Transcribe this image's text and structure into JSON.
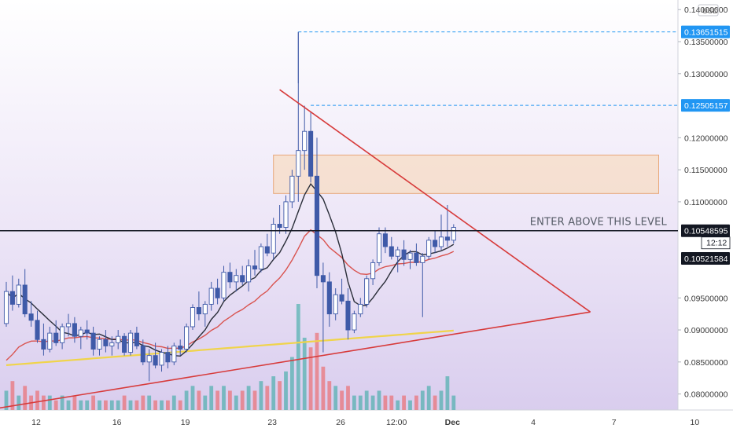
{
  "chart_data": {
    "type": "candlestick",
    "currency": "USD",
    "y_axis": {
      "min": 0.0775,
      "max": 0.1415,
      "ticks": [
        "0.14000000",
        "0.13500000",
        "0.13000000",
        "0.12000000",
        "0.11500000",
        "0.11000000",
        "0.09500000",
        "0.09000000",
        "0.08500000",
        "0.08000000"
      ],
      "tick_values": [
        0.14,
        0.135,
        0.13,
        0.12,
        0.115,
        0.11,
        0.095,
        0.09,
        0.085,
        0.08
      ]
    },
    "x_axis": {
      "labels": [
        "12",
        "16",
        "19",
        "23",
        "26",
        "12:00",
        "Dec",
        "4",
        "7",
        "10"
      ],
      "label_index": [
        0,
        13,
        24,
        38,
        49,
        58,
        67,
        80,
        93,
        106
      ]
    },
    "price_tags": [
      {
        "value": 0.13651515,
        "label": "0.13651515",
        "style": "blue"
      },
      {
        "value": 0.12505157,
        "label": "0.12505157",
        "style": "blue"
      },
      {
        "value": 0.10548595,
        "label": "0.10548595",
        "style": "black"
      },
      {
        "value": 0.10521584,
        "label": "0.10521584",
        "style": "black"
      }
    ],
    "countdown": "12:12",
    "annotation": {
      "text": "ENTER ABOVE THIS LEVEL",
      "level": 0.10548595
    },
    "zone": {
      "x_from": 43,
      "x_to": 105,
      "y_low": 0.1113,
      "y_high": 0.1173
    },
    "trendlines": [
      {
        "name": "resistance",
        "x1": 44,
        "y1": 0.1275,
        "x2": 94,
        "y2": 0.0928
      },
      {
        "name": "support",
        "x1": -5,
        "y1": 0.0772,
        "x2": 94,
        "y2": 0.0928
      }
    ],
    "colors": {
      "up": "#26a69a",
      "down": "#ef5350",
      "candle_body": "#3f5aa8",
      "vol_up": "#26a69a",
      "vol_down": "#ef5350",
      "ma_dark": "#2a2e39",
      "ma_red": "#d9534f",
      "ma_yellow": "#f0d44a",
      "trend": "#d73b3b",
      "zone_fill": "#f7dcc4",
      "zone_stroke": "#e8a87c",
      "tag_blue": "#2196f3"
    },
    "candles": [
      [
        0.091,
        0.0975,
        0.0905,
        0.096
      ],
      [
        0.096,
        0.0985,
        0.093,
        0.094
      ],
      [
        0.094,
        0.098,
        0.0935,
        0.097
      ],
      [
        0.097,
        0.0995,
        0.092,
        0.0925
      ],
      [
        0.0925,
        0.0945,
        0.0905,
        0.0915
      ],
      [
        0.0915,
        0.093,
        0.088,
        0.0885
      ],
      [
        0.0885,
        0.091,
        0.086,
        0.087
      ],
      [
        0.087,
        0.0905,
        0.0865,
        0.0895
      ],
      [
        0.0895,
        0.0915,
        0.0875,
        0.088
      ],
      [
        0.088,
        0.091,
        0.087,
        0.0905
      ],
      [
        0.0905,
        0.0925,
        0.089,
        0.091
      ],
      [
        0.091,
        0.092,
        0.088,
        0.089
      ],
      [
        0.089,
        0.0905,
        0.087,
        0.09
      ],
      [
        0.09,
        0.0915,
        0.0885,
        0.0895
      ],
      [
        0.0895,
        0.0905,
        0.086,
        0.087
      ],
      [
        0.087,
        0.089,
        0.086,
        0.0885
      ],
      [
        0.0885,
        0.09,
        0.0865,
        0.0875
      ],
      [
        0.0875,
        0.089,
        0.086,
        0.088
      ],
      [
        0.088,
        0.09,
        0.087,
        0.089
      ],
      [
        0.089,
        0.0895,
        0.086,
        0.0865
      ],
      [
        0.0865,
        0.09,
        0.086,
        0.0895
      ],
      [
        0.0895,
        0.0905,
        0.087,
        0.0875
      ],
      [
        0.0875,
        0.0885,
        0.0845,
        0.085
      ],
      [
        0.085,
        0.087,
        0.082,
        0.086
      ],
      [
        0.086,
        0.088,
        0.084,
        0.0845
      ],
      [
        0.0845,
        0.087,
        0.0835,
        0.0865
      ],
      [
        0.0865,
        0.0875,
        0.084,
        0.085
      ],
      [
        0.085,
        0.088,
        0.0845,
        0.0875
      ],
      [
        0.0875,
        0.0885,
        0.086,
        0.087
      ],
      [
        0.087,
        0.091,
        0.0865,
        0.0905
      ],
      [
        0.0905,
        0.094,
        0.09,
        0.0935
      ],
      [
        0.0935,
        0.096,
        0.0915,
        0.0925
      ],
      [
        0.0925,
        0.0945,
        0.0905,
        0.094
      ],
      [
        0.094,
        0.0975,
        0.093,
        0.0965
      ],
      [
        0.0965,
        0.098,
        0.094,
        0.095
      ],
      [
        0.095,
        0.1,
        0.0945,
        0.099
      ],
      [
        0.099,
        0.1005,
        0.0965,
        0.0975
      ],
      [
        0.0975,
        0.0995,
        0.096,
        0.0985
      ],
      [
        0.0985,
        0.1,
        0.097,
        0.0975
      ],
      [
        0.0975,
        0.101,
        0.096,
        0.1
      ],
      [
        0.1,
        0.1025,
        0.0985,
        0.0995
      ],
      [
        0.0995,
        0.1035,
        0.099,
        0.103
      ],
      [
        0.103,
        0.105,
        0.1015,
        0.102
      ],
      [
        0.102,
        0.1075,
        0.101,
        0.1065
      ],
      [
        0.1065,
        0.1095,
        0.105,
        0.106
      ],
      [
        0.106,
        0.111,
        0.105,
        0.11
      ],
      [
        0.11,
        0.115,
        0.109,
        0.114
      ],
      [
        0.114,
        0.1365,
        0.11,
        0.118
      ],
      [
        0.118,
        0.125,
        0.115,
        0.121
      ],
      [
        0.121,
        0.124,
        0.113,
        0.114
      ],
      [
        0.114,
        0.12,
        0.0965,
        0.0985
      ],
      [
        0.0985,
        0.1005,
        0.0865,
        0.0975
      ],
      [
        0.0975,
        0.099,
        0.0905,
        0.0925
      ],
      [
        0.0925,
        0.0965,
        0.0915,
        0.0955
      ],
      [
        0.0955,
        0.098,
        0.094,
        0.0945
      ],
      [
        0.0945,
        0.0965,
        0.0885,
        0.09
      ],
      [
        0.09,
        0.093,
        0.0895,
        0.0925
      ],
      [
        0.0925,
        0.095,
        0.092,
        0.094
      ],
      [
        0.094,
        0.0985,
        0.0935,
        0.098
      ],
      [
        0.098,
        0.101,
        0.097,
        0.1005
      ],
      [
        0.1005,
        0.106,
        0.1,
        0.105
      ],
      [
        0.105,
        0.106,
        0.102,
        0.103
      ],
      [
        0.103,
        0.1045,
        0.101,
        0.1015
      ],
      [
        0.1015,
        0.103,
        0.099,
        0.1025
      ],
      [
        0.1025,
        0.104,
        0.1,
        0.101
      ],
      [
        0.101,
        0.1025,
        0.0995,
        0.102
      ],
      [
        0.102,
        0.1035,
        0.1,
        0.1005
      ],
      [
        0.1005,
        0.102,
        0.092,
        0.1015
      ],
      [
        0.1015,
        0.1045,
        0.101,
        0.104
      ],
      [
        0.104,
        0.1055,
        0.102,
        0.103
      ],
      [
        0.103,
        0.108,
        0.1025,
        0.1045
      ],
      [
        0.1045,
        0.1095,
        0.103,
        0.104
      ],
      [
        0.104,
        0.1065,
        0.1035,
        0.106
      ]
    ],
    "volume": [
      [
        4,
        "up"
      ],
      [
        6,
        "down"
      ],
      [
        3,
        "up"
      ],
      [
        5,
        "down"
      ],
      [
        3,
        "down"
      ],
      [
        4,
        "down"
      ],
      [
        3,
        "down"
      ],
      [
        3,
        "up"
      ],
      [
        2,
        "down"
      ],
      [
        3,
        "up"
      ],
      [
        2,
        "up"
      ],
      [
        3,
        "down"
      ],
      [
        2,
        "up"
      ],
      [
        2,
        "up"
      ],
      [
        3,
        "down"
      ],
      [
        2,
        "up"
      ],
      [
        2,
        "down"
      ],
      [
        2,
        "up"
      ],
      [
        2,
        "up"
      ],
      [
        3,
        "down"
      ],
      [
        2,
        "up"
      ],
      [
        2,
        "down"
      ],
      [
        3,
        "down"
      ],
      [
        3,
        "up"
      ],
      [
        2,
        "down"
      ],
      [
        2,
        "up"
      ],
      [
        2,
        "down"
      ],
      [
        3,
        "up"
      ],
      [
        2,
        "down"
      ],
      [
        4,
        "up"
      ],
      [
        5,
        "up"
      ],
      [
        4,
        "down"
      ],
      [
        3,
        "up"
      ],
      [
        5,
        "up"
      ],
      [
        4,
        "down"
      ],
      [
        5,
        "up"
      ],
      [
        4,
        "down"
      ],
      [
        3,
        "up"
      ],
      [
        4,
        "down"
      ],
      [
        5,
        "up"
      ],
      [
        4,
        "down"
      ],
      [
        6,
        "up"
      ],
      [
        5,
        "down"
      ],
      [
        7,
        "up"
      ],
      [
        6,
        "down"
      ],
      [
        8,
        "up"
      ],
      [
        11,
        "up"
      ],
      [
        22,
        "up"
      ],
      [
        15,
        "up"
      ],
      [
        13,
        "down"
      ],
      [
        16,
        "down"
      ],
      [
        9,
        "down"
      ],
      [
        6,
        "down"
      ],
      [
        5,
        "up"
      ],
      [
        4,
        "down"
      ],
      [
        5,
        "down"
      ],
      [
        3,
        "up"
      ],
      [
        3,
        "up"
      ],
      [
        4,
        "up"
      ],
      [
        3,
        "up"
      ],
      [
        4,
        "up"
      ],
      [
        3,
        "down"
      ],
      [
        3,
        "down"
      ],
      [
        2,
        "up"
      ],
      [
        3,
        "down"
      ],
      [
        2,
        "up"
      ],
      [
        3,
        "down"
      ],
      [
        4,
        "up"
      ],
      [
        5,
        "up"
      ],
      [
        3,
        "down"
      ],
      [
        4,
        "up"
      ],
      [
        7,
        "up"
      ],
      [
        3,
        "up"
      ]
    ]
  }
}
